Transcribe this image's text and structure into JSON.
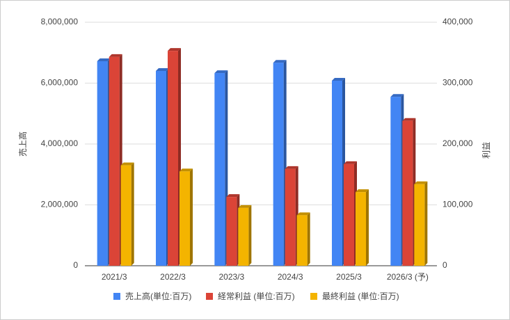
{
  "chart_data": {
    "type": "bar3d",
    "categories": [
      "2021/3",
      "2022/3",
      "2023/3",
      "2024/3",
      "2025/3",
      "2026/3 (予)"
    ],
    "y_label": "売上高",
    "y2_label": "利益",
    "ylim": [
      0,
      8000000
    ],
    "yticks": [
      0,
      {
        "value": 2000000,
        "label": "2,000,000"
      },
      {
        "value": 4000000,
        "label": "4,000,000"
      },
      {
        "value": 6000000,
        "label": "6,000,000"
      },
      {
        "value": 8000000,
        "label": "8,000,000"
      }
    ],
    "y2lim": [
      0,
      400000
    ],
    "y2ticks": [
      0,
      {
        "value": 100000,
        "label": "100,000"
      },
      {
        "value": 200000,
        "label": "200,000"
      },
      {
        "value": 300000,
        "label": "300,000"
      },
      {
        "value": 400000,
        "label": "400,000"
      }
    ],
    "grid": true,
    "legend": "bottom",
    "series": [
      {
        "name": "売上高(単位:百万)",
        "color": "#4285f4",
        "values": [
          6720000,
          6400000,
          6330000,
          6670000,
          6080000,
          5550000
        ]
      },
      {
        "name": "経常利益 (単位:百万)",
        "color": "#db4437",
        "axis": "y2",
        "values": [
          343000,
          353000,
          113000,
          159000,
          167000,
          238000
        ]
      },
      {
        "name": "最終利益 (単位:百万)",
        "color": "#f4b400",
        "axis": "y2",
        "values": [
          165000,
          155000,
          95000,
          83000,
          121000,
          134000
        ]
      }
    ]
  }
}
